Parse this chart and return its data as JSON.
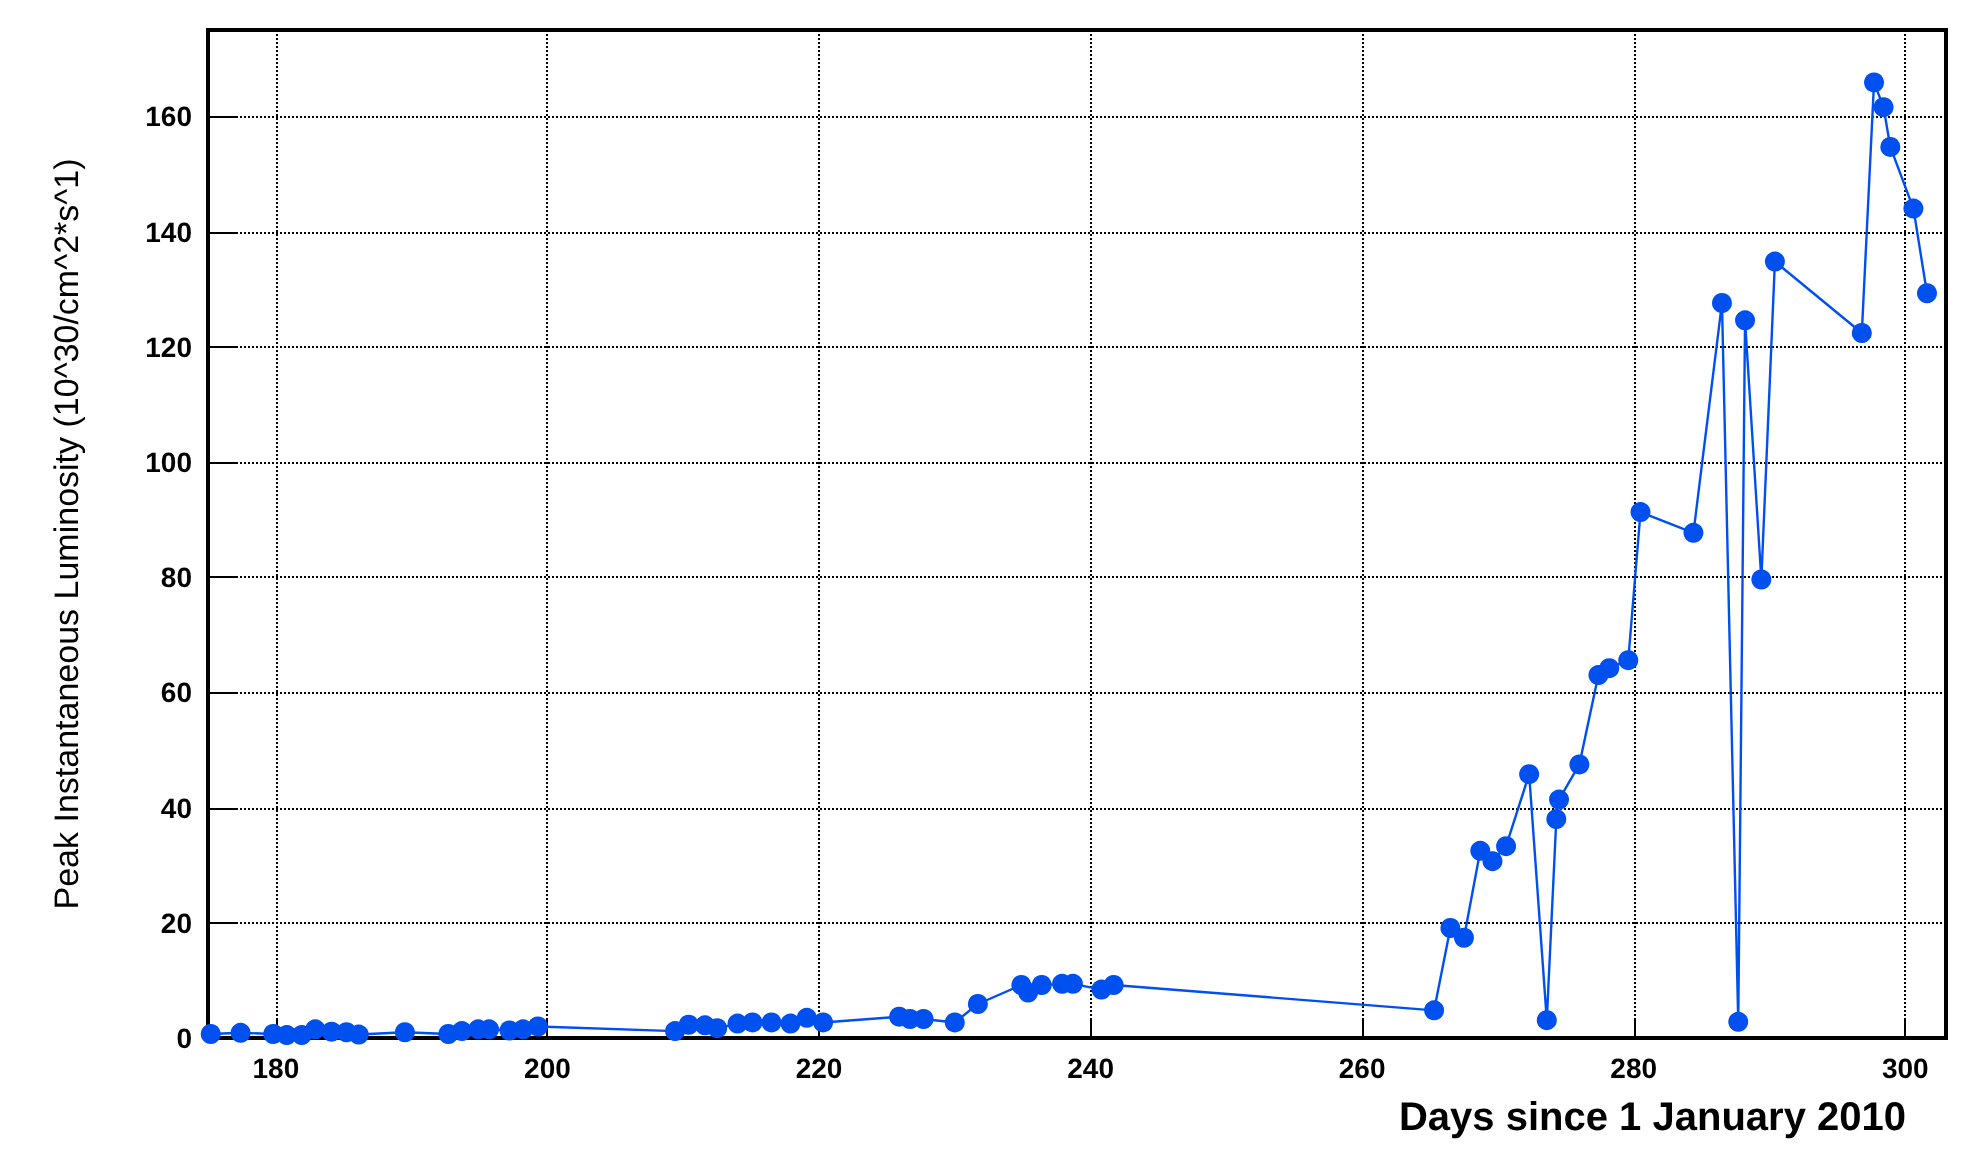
{
  "chart_data": {
    "type": "line",
    "xlabel": "Days since 1 January 2010",
    "ylabel": "Peak Instantaneous Luminosity (10^30/cm^2*s^1)",
    "x": [
      175.2,
      177.4,
      179.8,
      180.8,
      181.9,
      182.9,
      184.1,
      185.2,
      186.1,
      189.5,
      192.7,
      193.7,
      194.9,
      195.7,
      197.2,
      198.2,
      199.3,
      209.4,
      210.4,
      211.6,
      212.5,
      214,
      215.1,
      216.5,
      217.9,
      219.1,
      220.3,
      225.9,
      226.7,
      227.7,
      230,
      231.7,
      234.9,
      235.4,
      236.4,
      237.9,
      238.7,
      240.8,
      241.7,
      265.3,
      266.5,
      267.5,
      268.7,
      269.6,
      270.6,
      272.3,
      273.6,
      274.3,
      274.5,
      276,
      277.4,
      278.2,
      279.6,
      280.5,
      284.4,
      286.5,
      287.7,
      288.2,
      289.4,
      290.4,
      296.8,
      297.7,
      298.4,
      298.9,
      300.6,
      301.6
    ],
    "series": [
      {
        "color": "#0050f0",
        "values": [
          0.7,
          0.9,
          0.7,
          0.5,
          0.5,
          1.5,
          1.1,
          1.0,
          0.6,
          1.0,
          0.7,
          1.2,
          1.5,
          1.5,
          1.3,
          1.5,
          2.0,
          1.2,
          2.3,
          2.2,
          1.7,
          2.5,
          2.7,
          2.7,
          2.5,
          3.5,
          2.7,
          3.7,
          3.3,
          3.3,
          2.7,
          5.9,
          9.2,
          7.9,
          9.2,
          9.4,
          9.4,
          8.4,
          9.2,
          4.8,
          19.1,
          17.4,
          32.5,
          30.7,
          33.3,
          45.8,
          3.1,
          38,
          41.4,
          47.5,
          63,
          64.2,
          65.6,
          91.3,
          87.7,
          127.6,
          2.8,
          124.6,
          79.6,
          134.8,
          122.4,
          165.9,
          161.6,
          154.7,
          144,
          129.3
        ]
      }
    ],
    "xlim": [
      175,
      303
    ],
    "ylim": [
      0,
      175
    ],
    "xticks": [
      180,
      200,
      220,
      240,
      260,
      280,
      300
    ],
    "yticks": [
      0,
      20,
      40,
      60,
      80,
      100,
      120,
      140,
      160
    ],
    "grid": true,
    "marker": "circle",
    "line_style": "solid"
  }
}
